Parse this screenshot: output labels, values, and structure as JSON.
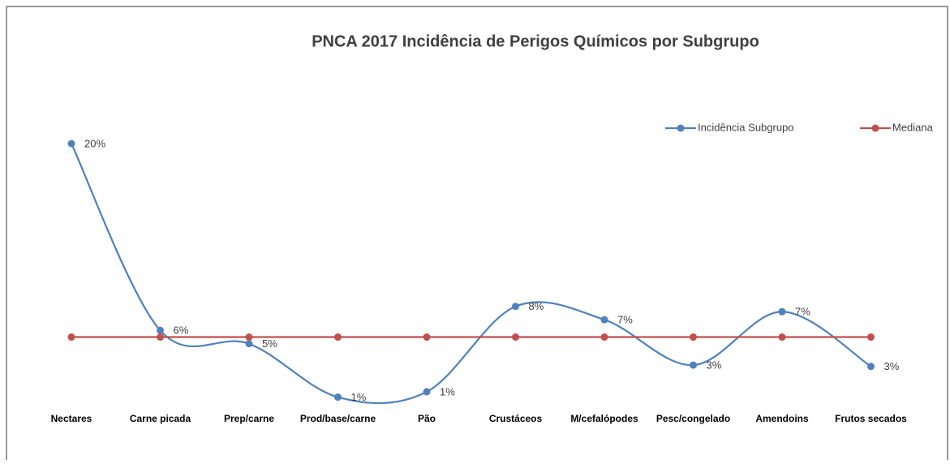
{
  "chart_data": {
    "type": "line",
    "title": "PNCA 2017 Incidência de Perigos Químicos por Subgrupo",
    "categories": [
      "Nectares",
      "Carne picada",
      "Prep/carne",
      "Prod/base/carne",
      "Pão",
      "Crustáceos",
      "M/cefalópodes",
      "Pesc/congelado",
      "Amendoins",
      "Frutos secados"
    ],
    "series": [
      {
        "name": "Incidência Subgrupo",
        "color": "#4f81bd",
        "values": [
          20,
          6,
          5,
          1,
          1.4,
          7.8,
          6.8,
          3.4,
          7.4,
          3.3
        ],
        "value_labels": [
          "20%",
          "6%",
          "5%",
          "1%",
          "1%",
          "8%",
          "7%",
          "3%",
          "7%",
          "3%"
        ]
      },
      {
        "name": "Mediana",
        "color": "#c0504d",
        "values": [
          5.5,
          5.5,
          5.5,
          5.5,
          5.5,
          5.5,
          5.5,
          5.5,
          5.5,
          5.5
        ]
      }
    ],
    "ylim": [
      0,
      20
    ],
    "smooth": true,
    "legend": "top-right"
  }
}
